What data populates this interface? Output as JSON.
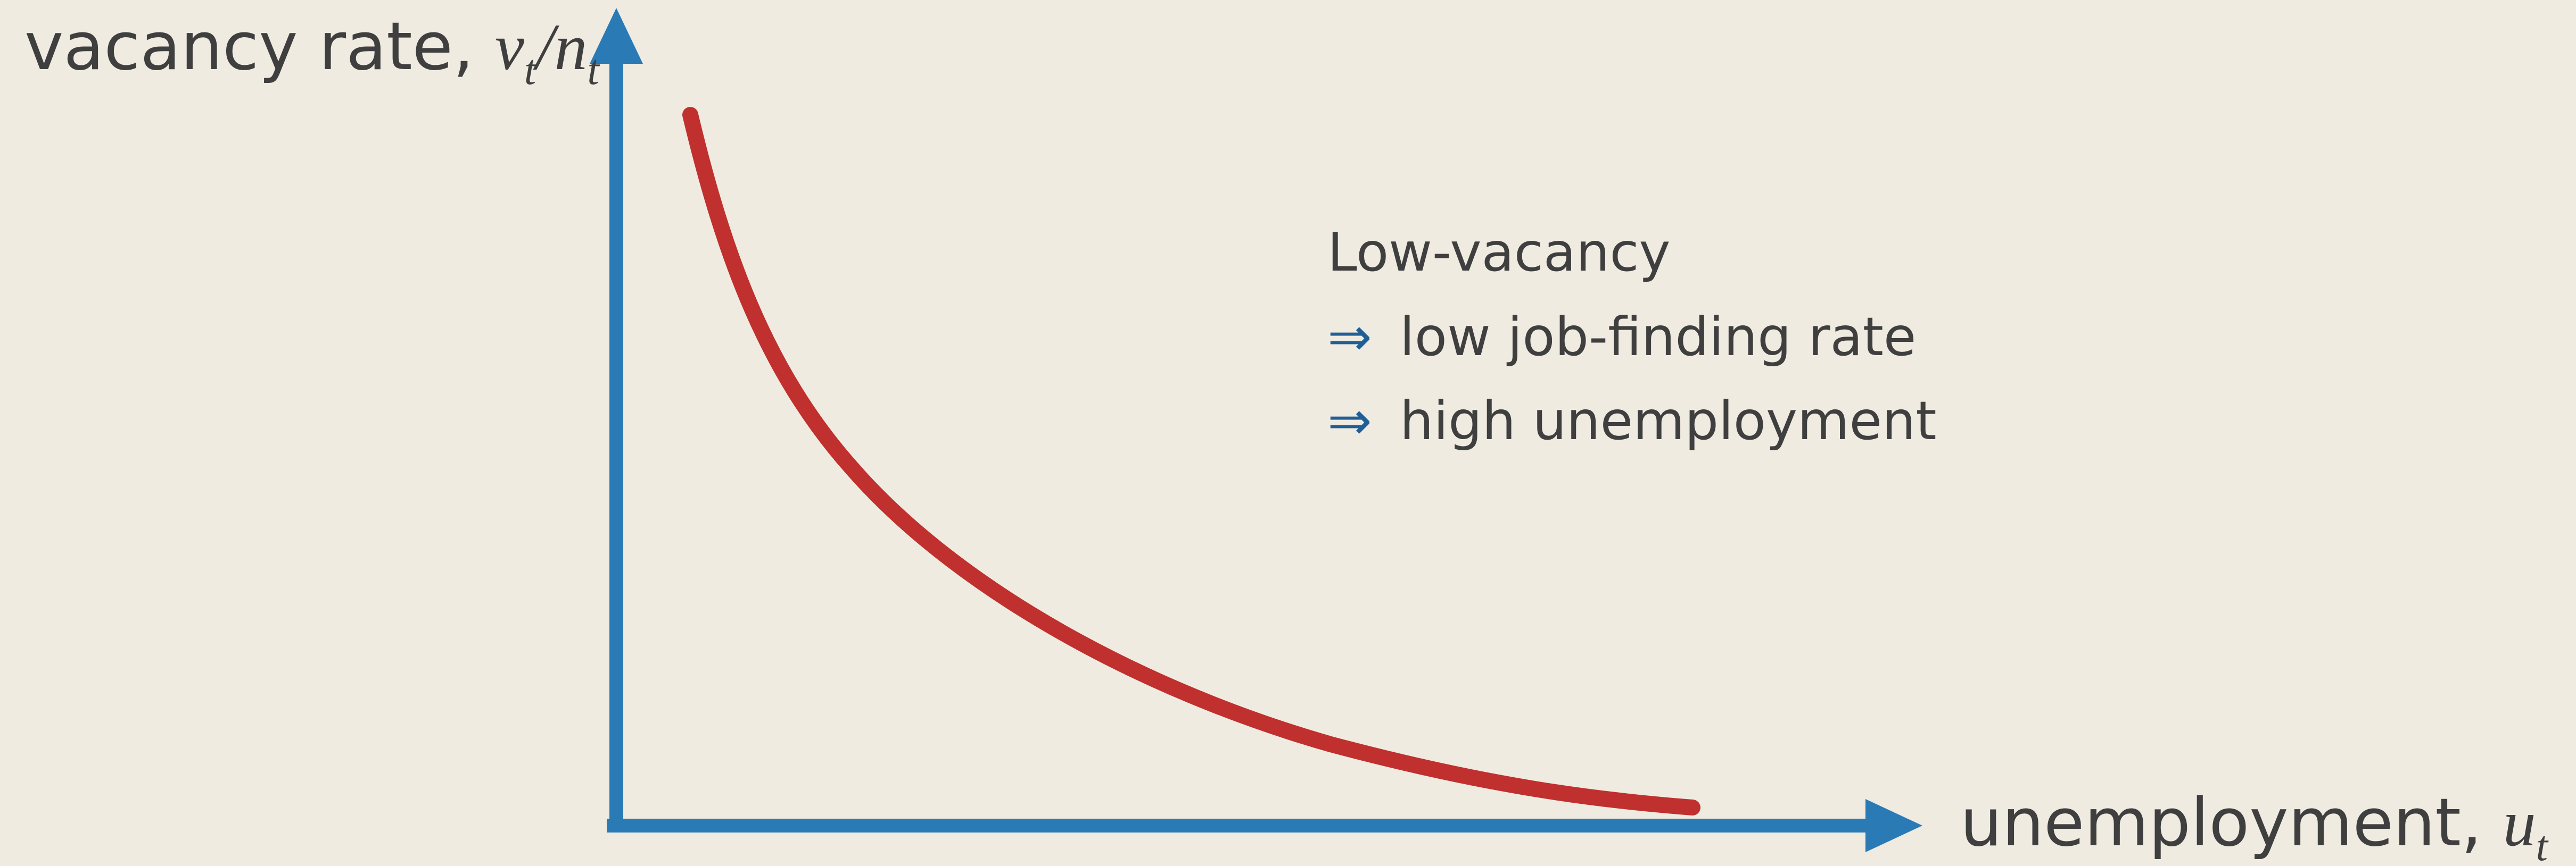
{
  "y_axis_label": {
    "text": "vacancy rate, ",
    "var": "v",
    "sub": "t",
    "sep": "/",
    "denom": "n",
    "denom_sub": "t"
  },
  "x_axis_label": {
    "text": "unemployment, ",
    "var": "u",
    "sub": "t"
  },
  "annotation": [
    {
      "text": "Low-vacancy"
    },
    {
      "arrow": "⇒",
      "text": "low job-finding rate"
    },
    {
      "arrow": "⇒",
      "text": "high unemployment"
    }
  ]
}
